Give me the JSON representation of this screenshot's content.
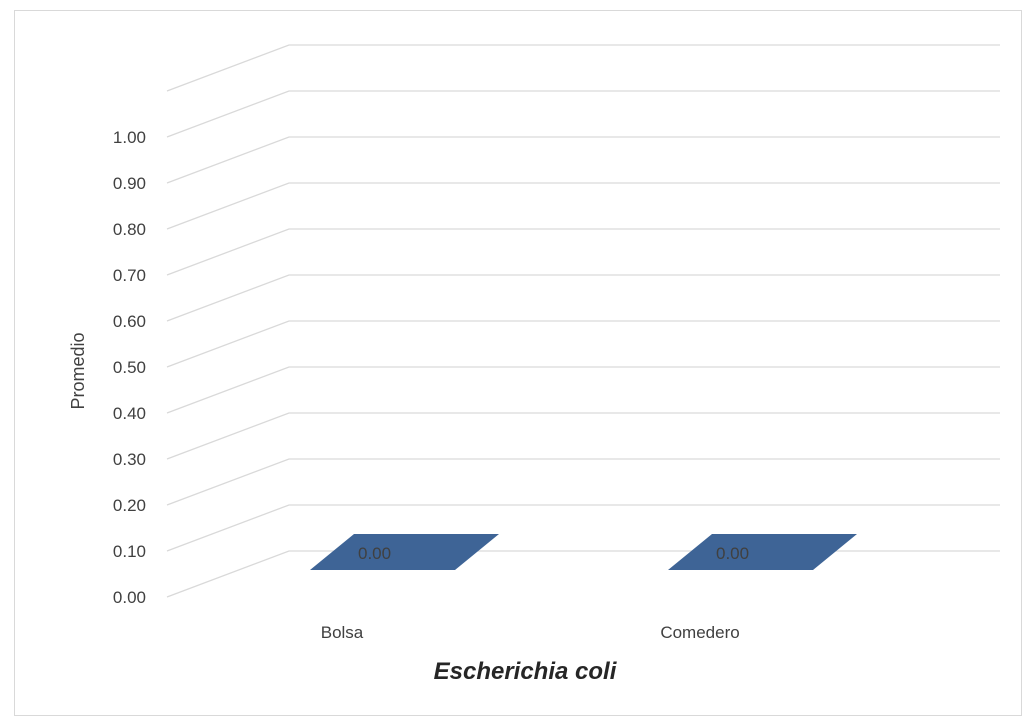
{
  "chart_data": {
    "type": "bar",
    "categories": [
      "Bolsa",
      "Comedero"
    ],
    "values": [
      0.0,
      0.0
    ],
    "data_labels": [
      "0.00",
      "0.00"
    ],
    "xlabel": "Escherichia coli",
    "ylabel": "Promedio",
    "ylim": [
      0,
      1
    ],
    "y_ticks": [
      "0.00",
      "0.10",
      "0.20",
      "0.30",
      "0.40",
      "0.50",
      "0.60",
      "0.70",
      "0.80",
      "0.90",
      "1.00"
    ],
    "grid": true,
    "three_d": true,
    "bar_color": "#3e6496",
    "grid_color": "#d9d9d9"
  }
}
